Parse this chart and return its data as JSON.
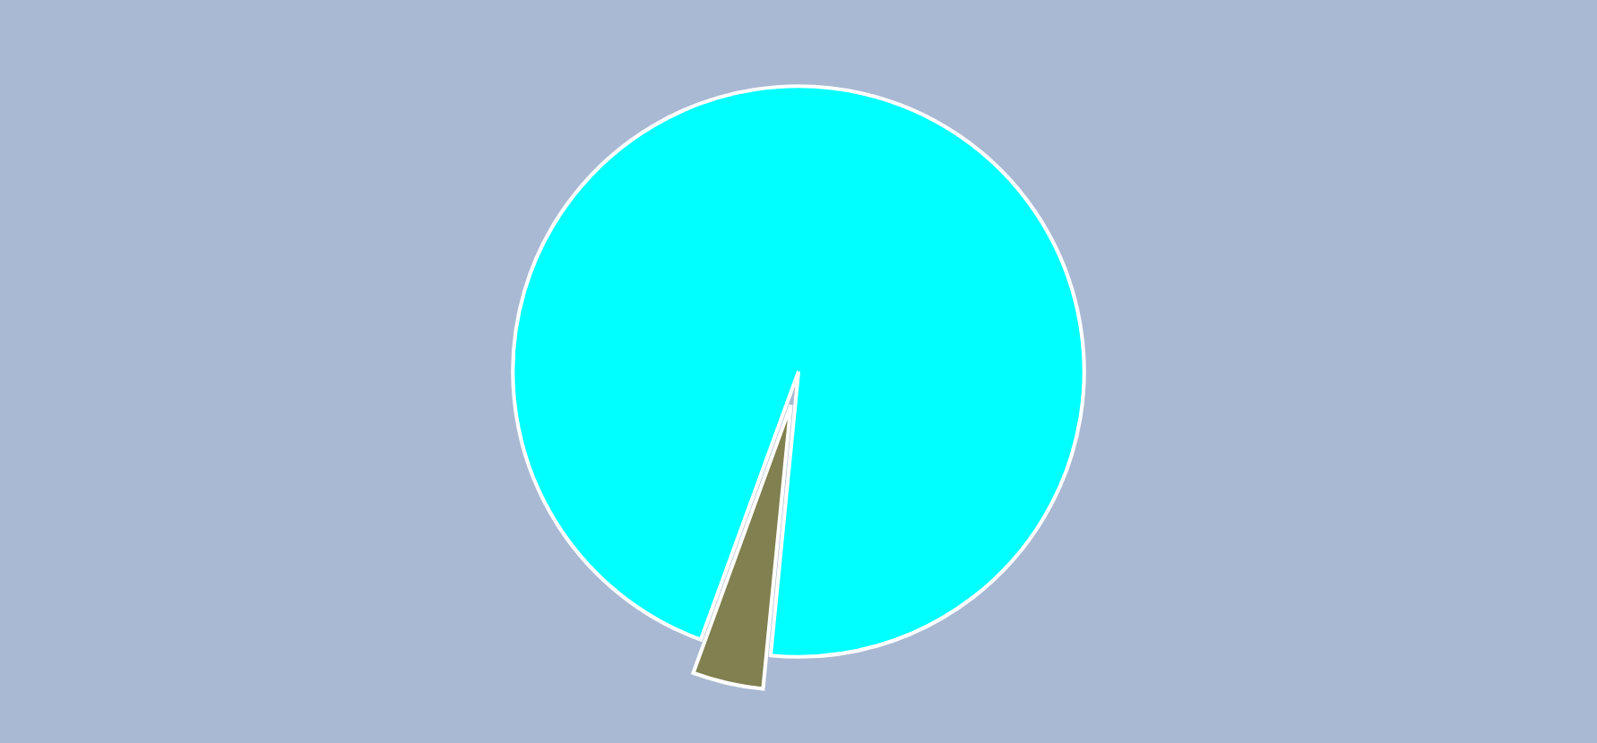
{
  "chart_data": {
    "type": "pie",
    "categories": [
      null,
      null
    ],
    "values": [
      96,
      4
    ],
    "colors": [
      "#00ffff",
      "#808050"
    ]
  }
}
